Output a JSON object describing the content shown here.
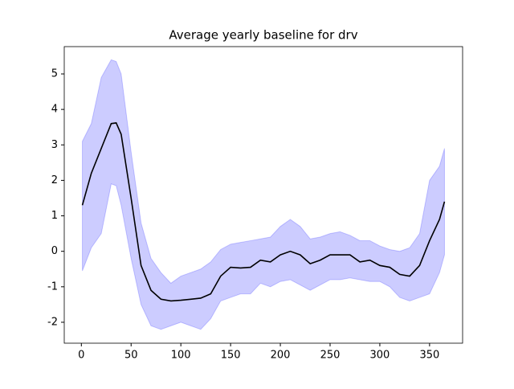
{
  "chart_data": {
    "type": "line_band",
    "title": "Average yearly baseline for drv",
    "x": [
      1,
      10,
      20,
      30,
      35,
      40,
      50,
      60,
      70,
      80,
      90,
      100,
      110,
      120,
      130,
      140,
      150,
      160,
      170,
      180,
      190,
      200,
      210,
      220,
      230,
      240,
      250,
      260,
      270,
      280,
      290,
      300,
      310,
      320,
      330,
      340,
      350,
      360,
      365
    ],
    "values": [
      1.3,
      2.2,
      2.9,
      3.6,
      3.62,
      3.3,
      1.5,
      -0.4,
      -1.1,
      -1.35,
      -1.4,
      -1.38,
      -1.35,
      -1.32,
      -1.2,
      -0.7,
      -0.45,
      -0.47,
      -0.45,
      -0.25,
      -0.3,
      -0.1,
      0.0,
      -0.1,
      -0.35,
      -0.25,
      -0.1,
      -0.1,
      -0.1,
      -0.3,
      -0.25,
      -0.4,
      -0.45,
      -0.65,
      -0.7,
      -0.4,
      0.3,
      0.9,
      1.4
    ],
    "upper": [
      3.1,
      3.6,
      4.9,
      5.4,
      5.35,
      5.0,
      2.8,
      0.8,
      -0.2,
      -0.6,
      -0.9,
      -0.7,
      -0.6,
      -0.5,
      -0.3,
      0.05,
      0.2,
      0.25,
      0.3,
      0.35,
      0.4,
      0.7,
      0.9,
      0.7,
      0.35,
      0.4,
      0.5,
      0.55,
      0.45,
      0.3,
      0.3,
      0.15,
      0.05,
      0.0,
      0.1,
      0.5,
      2.0,
      2.4,
      2.9
    ],
    "lower": [
      -0.55,
      0.1,
      0.5,
      1.9,
      1.85,
      1.3,
      -0.2,
      -1.5,
      -2.1,
      -2.2,
      -2.1,
      -2.0,
      -2.1,
      -2.2,
      -1.9,
      -1.4,
      -1.3,
      -1.2,
      -1.2,
      -0.9,
      -1.0,
      -0.85,
      -0.8,
      -0.95,
      -1.1,
      -0.95,
      -0.8,
      -0.8,
      -0.75,
      -0.8,
      -0.85,
      -0.85,
      -1.0,
      -1.3,
      -1.4,
      -1.3,
      -1.2,
      -0.6,
      -0.1
    ],
    "color": "#000000",
    "band_color": "#0000ff",
    "xlim": [
      -17.2,
      383.2
    ],
    "xticks": [
      0,
      50,
      100,
      150,
      200,
      250,
      300,
      350
    ],
    "ylim": [
      -2.59,
      5.77
    ],
    "yticks": [
      -2,
      -1,
      0,
      1,
      2,
      3,
      4,
      5
    ]
  }
}
